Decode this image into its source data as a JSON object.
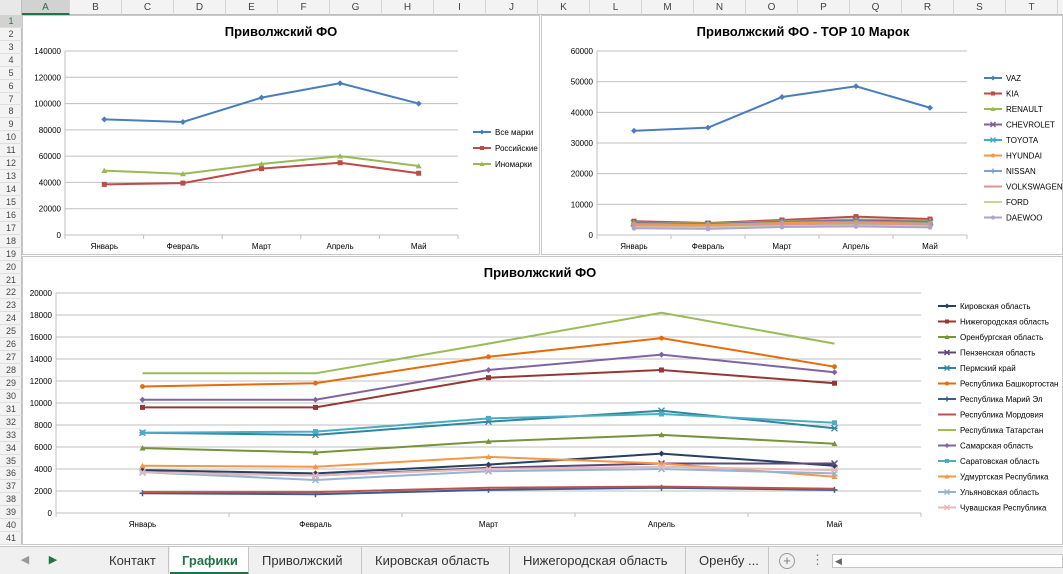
{
  "sheet": {
    "columns": [
      "A",
      "B",
      "C",
      "D",
      "E",
      "F",
      "G",
      "H",
      "I",
      "J",
      "K",
      "L",
      "M",
      "N",
      "O",
      "P",
      "Q",
      "R",
      "S",
      "T"
    ],
    "rows": [
      "1",
      "2",
      "3",
      "4",
      "5",
      "6",
      "7",
      "8",
      "9",
      "10",
      "11",
      "12",
      "13",
      "14",
      "15",
      "16",
      "17",
      "18",
      "19",
      "20",
      "21",
      "22",
      "23",
      "24",
      "25",
      "26",
      "27",
      "28",
      "29",
      "30",
      "31",
      "32",
      "33",
      "34",
      "35",
      "36",
      "37",
      "38",
      "39",
      "40",
      "41"
    ],
    "selected_column": "A",
    "selected_row": "1"
  },
  "tabs": {
    "items": [
      {
        "label": "Контакт",
        "active": false
      },
      {
        "label": "Графики",
        "active": true
      },
      {
        "label": "Приволжский",
        "active": false
      },
      {
        "label": "Кировская область",
        "active": false
      },
      {
        "label": "Нижегородская область",
        "active": false
      },
      {
        "label": "Оренбу ...",
        "active": false
      }
    ],
    "add_symbol": "+",
    "more_symbol": "⋮",
    "nav_prev": "◀",
    "nav_next": "▶"
  },
  "chart_data": [
    {
      "type": "line",
      "title": "Приволжский ФО",
      "categories": [
        "Январь",
        "Февраль",
        "Март",
        "Апрель",
        "Май"
      ],
      "ylim": [
        0,
        140000
      ],
      "ystep": 20000,
      "grid": true,
      "legend_position": "right",
      "series": [
        {
          "name": "Все марки",
          "color": "#4a7ebb",
          "marker": "diamond",
          "values": [
            88000,
            86000,
            104500,
            115500,
            100000
          ]
        },
        {
          "name": "Российские",
          "color": "#be4b48",
          "marker": "square",
          "values": [
            38500,
            39500,
            50500,
            55000,
            47000
          ]
        },
        {
          "name": "Иномарки",
          "color": "#98b954",
          "marker": "triangle",
          "values": [
            49000,
            46500,
            54000,
            60000,
            52500
          ]
        }
      ]
    },
    {
      "type": "line",
      "title": "Приволжский ФО - TOP 10 Марок",
      "categories": [
        "Январь",
        "Февраль",
        "Март",
        "Апрель",
        "Май"
      ],
      "ylim": [
        0,
        60000
      ],
      "ystep": 10000,
      "grid": true,
      "legend_position": "right",
      "series": [
        {
          "name": "VAZ",
          "color": "#4a7ebb",
          "marker": "diamond",
          "values": [
            34000,
            35000,
            45000,
            48500,
            41500
          ]
        },
        {
          "name": "KIA",
          "color": "#be4b48",
          "marker": "square",
          "values": [
            4500,
            3900,
            4900,
            6000,
            5200
          ]
        },
        {
          "name": "RENAULT",
          "color": "#98b954",
          "marker": "triangle",
          "values": [
            4100,
            3700,
            4500,
            5100,
            4700
          ]
        },
        {
          "name": "CHEVROLET",
          "color": "#7d60a0",
          "marker": "x",
          "values": [
            3900,
            3500,
            4300,
            4700,
            4300
          ]
        },
        {
          "name": "TOYOTA",
          "color": "#46aac4",
          "marker": "star",
          "values": [
            3700,
            3300,
            4100,
            4400,
            4000
          ]
        },
        {
          "name": "HYUNDAI",
          "color": "#f79646",
          "marker": "circle",
          "values": [
            3500,
            3300,
            3900,
            4100,
            3700
          ]
        },
        {
          "name": "NISSAN",
          "color": "#7fa0cf",
          "marker": "plus",
          "values": [
            2900,
            2700,
            3300,
            3500,
            3100
          ]
        },
        {
          "name": "VOLKSWAGEN",
          "color": "#d99694",
          "marker": "none",
          "values": [
            3100,
            2900,
            3500,
            3800,
            3400
          ]
        },
        {
          "name": "FORD",
          "color": "#c3d69b",
          "marker": "none",
          "values": [
            2500,
            2400,
            2900,
            3100,
            2800
          ]
        },
        {
          "name": "DAEWOO",
          "color": "#b3a2c7",
          "marker": "circle",
          "values": [
            2200,
            2000,
            2600,
            2800,
            2500
          ]
        }
      ]
    },
    {
      "type": "line",
      "title": "Приволжский ФО",
      "categories": [
        "Январь",
        "Февраль",
        "Март",
        "Апрель",
        "Май"
      ],
      "ylim": [
        0,
        20000
      ],
      "ystep": 2000,
      "grid": true,
      "legend_position": "right",
      "series": [
        {
          "name": "Кировская область",
          "color": "#254061",
          "marker": "diamond",
          "values": [
            3900,
            3600,
            4400,
            5400,
            4300
          ]
        },
        {
          "name": "Нижегородская область",
          "color": "#953735",
          "marker": "square",
          "values": [
            9600,
            9600,
            12300,
            13000,
            11800
          ]
        },
        {
          "name": "Оренбургская область",
          "color": "#77933c",
          "marker": "triangle",
          "values": [
            5900,
            5500,
            6500,
            7100,
            6300
          ]
        },
        {
          "name": "Пензенская область",
          "color": "#5f497a",
          "marker": "x",
          "values": [
            3700,
            3400,
            4100,
            4500,
            4500
          ]
        },
        {
          "name": "Пермский край",
          "color": "#31859c",
          "marker": "star",
          "values": [
            7300,
            7100,
            8300,
            9300,
            7700
          ]
        },
        {
          "name": "Республика Башкортостан",
          "color": "#e46c0a",
          "marker": "circle",
          "values": [
            11500,
            11800,
            14200,
            15900,
            13300
          ]
        },
        {
          "name": "Республика Марий Эл",
          "color": "#376092",
          "marker": "plus",
          "values": [
            1800,
            1700,
            2100,
            2300,
            2100
          ]
        },
        {
          "name": "Республика Мордовия",
          "color": "#c0504d",
          "marker": "none",
          "values": [
            1900,
            1900,
            2300,
            2400,
            2200
          ]
        },
        {
          "name": "Республика Татарстан",
          "color": "#9bbb59",
          "marker": "none",
          "values": [
            12700,
            12700,
            15400,
            18200,
            15400
          ]
        },
        {
          "name": "Самарская область",
          "color": "#8064a2",
          "marker": "diamond",
          "values": [
            10300,
            10300,
            13000,
            14400,
            12800
          ]
        },
        {
          "name": "Саратовская область",
          "color": "#4bacc6",
          "marker": "square",
          "values": [
            7300,
            7400,
            8600,
            9000,
            8200
          ]
        },
        {
          "name": "Удмуртская Республика",
          "color": "#f79646",
          "marker": "triangle",
          "values": [
            4300,
            4200,
            5100,
            4500,
            3300
          ]
        },
        {
          "name": "Ульяновская область",
          "color": "#95b3d7",
          "marker": "x",
          "values": [
            3700,
            3000,
            3800,
            4000,
            3600
          ]
        },
        {
          "name": "Чувашская Республика",
          "color": "#e6b9b8",
          "marker": "star",
          "values": [
            3700,
            3400,
            4000,
            4200,
            3900
          ]
        }
      ]
    }
  ]
}
